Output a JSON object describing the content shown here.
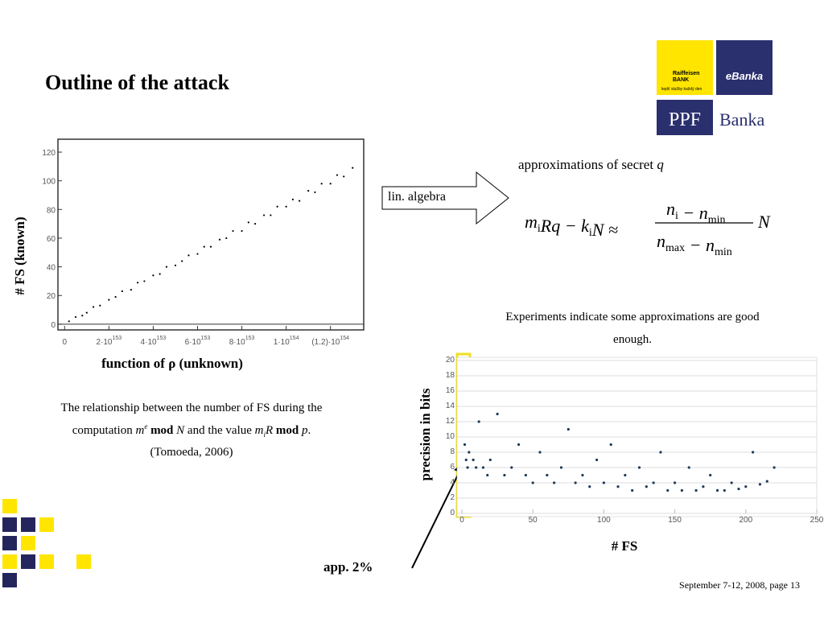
{
  "title": "Outline of the attack",
  "logos": {
    "raiffeisen": "Raiffeisen",
    "bank": "BANK",
    "tagline": "lepší služby každý den",
    "ebanka": "eBanka",
    "ppf": "PPF",
    "banka": "Banka"
  },
  "arrow_label": "lin. algebra",
  "approx_label": {
    "text": "approximations of secret",
    "var": "q"
  },
  "formula": {
    "lhs": [
      {
        "text": "m",
        "sub": "i"
      },
      {
        "text": "Rq − k",
        "sub": "i"
      },
      {
        "text": "N ≈"
      }
    ],
    "numerator": [
      {
        "text": "n",
        "sub": "i"
      },
      {
        "text": " − n",
        "sub": "min"
      }
    ],
    "denominator": [
      {
        "text": "n",
        "sub": "max"
      },
      {
        "text": " − n",
        "sub": "min"
      }
    ],
    "rhs": "N"
  },
  "experiments": [
    "Experiments indicate some approximations are good",
    "enough."
  ],
  "caption": {
    "l1": "The relationship between the number of FS during the",
    "l2a": "computation ",
    "m": "m",
    "e": "e",
    "mod1": " mod ",
    "N": "N",
    "l2b": " and the value ",
    "m2": "m",
    "i": "i",
    "R": "R",
    "mod2": " mod ",
    "p": "p",
    "dot": ".",
    "l3": "(Tomoeda, 2006)"
  },
  "callout": "app. 2%",
  "footer": "September 7-12, 2008, page 13",
  "chart_data": [
    {
      "type": "scatter",
      "x_label": "function of ρ (unknown)",
      "y_label": "# FS (known)",
      "color": "#000000",
      "xlim": [
        -3e+152,
        1.35e+154
      ],
      "ylim": [
        -4,
        129
      ],
      "xticks": [
        0,
        {
          "value": 2e+153,
          "label": "2·10",
          "exponent": "153"
        },
        {
          "value": 4e+153,
          "label": "4·10",
          "exponent": "153"
        },
        {
          "value": 6e+153,
          "label": "6·10",
          "exponent": "153"
        },
        {
          "value": 8e+153,
          "label": "8·10",
          "exponent": "153"
        },
        {
          "value": 1e+154,
          "label": "1·10",
          "exponent": "154"
        },
        {
          "value": 1.2e+154,
          "label": "(1.2)·10",
          "exponent": "154"
        }
      ],
      "yticks": [
        0,
        20,
        40,
        60,
        80,
        100,
        120
      ],
      "x": [
        2e+152,
        5e+152,
        8e+152,
        1e+153,
        1.3e+153,
        1.6e+153,
        2e+153,
        2.3e+153,
        2.6e+153,
        3e+153,
        3.3e+153,
        3.6e+153,
        4e+153,
        4.3e+153,
        4.6e+153,
        5e+153,
        5.3e+153,
        5.6e+153,
        6e+153,
        6.3e+153,
        6.6e+153,
        7e+153,
        7.3e+153,
        7.6e+153,
        8e+153,
        8.3e+153,
        8.6e+153,
        9e+153,
        9.3e+153,
        9.6e+153,
        1e+154,
        1.03e+154,
        1.06e+154,
        1.1e+154,
        1.13e+154,
        1.16e+154,
        1.2e+154,
        1.23e+154,
        1.26e+154,
        1.3e+154
      ],
      "values": [
        2,
        5,
        6,
        8,
        12,
        13,
        17,
        19,
        23,
        24,
        29,
        30,
        34,
        35,
        40,
        41,
        44,
        48,
        49,
        54,
        54,
        59,
        60,
        65,
        65,
        71,
        70,
        76,
        76,
        82,
        82,
        87,
        86,
        93,
        92,
        98,
        98,
        104,
        103,
        109
      ]
    },
    {
      "type": "scatter",
      "x_label": "# FS",
      "y_label": "precision in bits",
      "color": "#1f3a5a",
      "grid": true,
      "xlim": [
        -3.4,
        250
      ],
      "ylim": [
        0,
        20
      ],
      "xticks": [
        0,
        50,
        100,
        150,
        200,
        250
      ],
      "yticks": [
        0,
        2,
        4,
        6,
        8,
        10,
        12,
        14,
        16,
        18,
        20
      ],
      "x": [
        2,
        3,
        4,
        5,
        8,
        10,
        12,
        15,
        18,
        20,
        25,
        30,
        35,
        40,
        45,
        50,
        55,
        60,
        65,
        70,
        75,
        80,
        85,
        90,
        95,
        100,
        105,
        110,
        115,
        120,
        125,
        130,
        135,
        140,
        145,
        150,
        155,
        160,
        165,
        170,
        175,
        180,
        185,
        190,
        195,
        200,
        205,
        210,
        215,
        220
      ],
      "values": [
        9,
        7,
        6,
        8,
        7,
        6,
        12,
        6,
        5,
        7,
        13,
        5,
        6,
        9,
        5,
        4,
        8,
        5,
        4,
        6,
        11,
        4,
        5,
        3.5,
        7,
        4,
        9,
        3.5,
        5,
        3,
        6,
        3.5,
        4,
        8,
        3,
        4,
        3,
        6,
        3,
        3.5,
        5,
        3,
        3,
        4,
        3.2,
        3.5,
        8,
        3.8,
        4.2,
        6
      ]
    }
  ]
}
